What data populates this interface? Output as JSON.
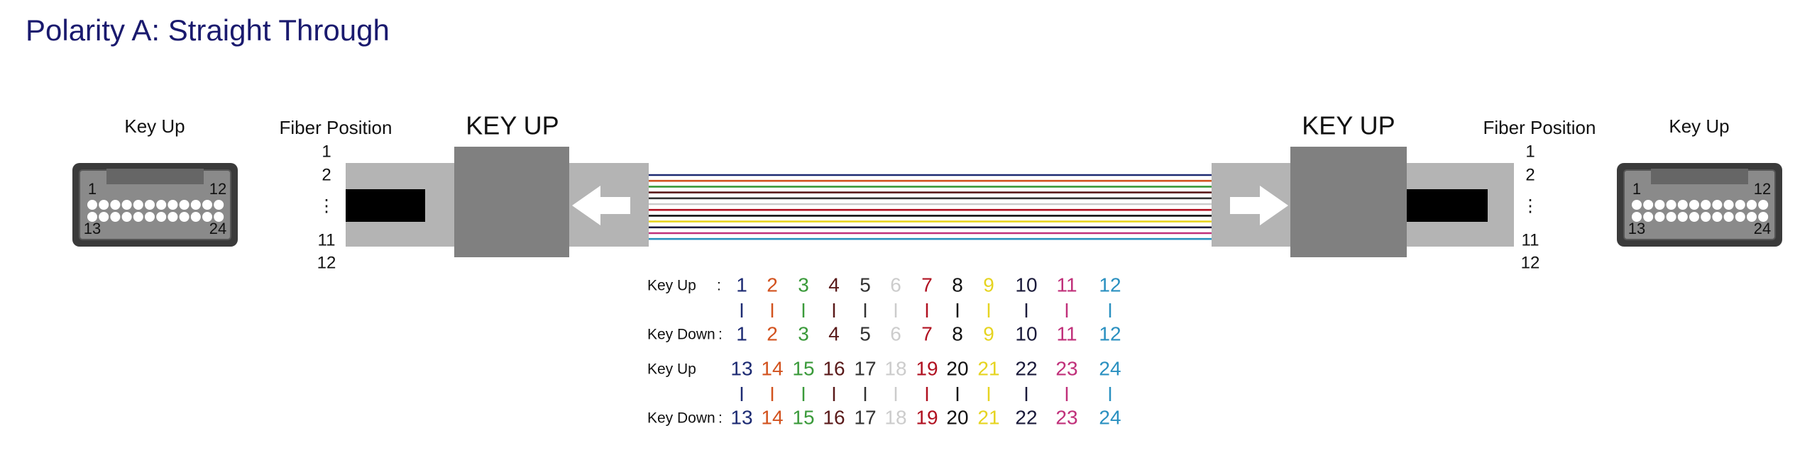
{
  "title": "Polarity A: Straight Through",
  "left": {
    "connector_label": "Key Up",
    "pin_labels": [
      "1",
      "12",
      "13",
      "24"
    ],
    "fiber_position_label": "Fiber Position",
    "positions": [
      "1",
      "2",
      "⋮",
      "11",
      "12"
    ],
    "key_label": "KEY UP"
  },
  "right": {
    "connector_label": "Key Up",
    "pin_labels": [
      "1",
      "12",
      "13",
      "24"
    ],
    "fiber_position_label": "Fiber Position",
    "positions": [
      "1",
      "2",
      "⋮",
      "11",
      "12"
    ],
    "key_label": "KEY UP"
  },
  "fiber_colors": [
    "#1c2a72",
    "#d2521e",
    "#3a9a3a",
    "#5a1a1a",
    "#333333",
    "#cccccc",
    "#b01020",
    "#111111",
    "#e6d420",
    "#1a1a3a",
    "#c0307a",
    "#2a90c0"
  ],
  "mapping": {
    "rows": [
      {
        "label": "Key Up",
        "separator": ":",
        "fibers": [
          "1",
          "2",
          "3",
          "4",
          "5",
          "6",
          "7",
          "8",
          "9",
          "10",
          "11",
          "12"
        ]
      },
      {
        "label": "Key Down",
        "separator": ":",
        "fibers": [
          "1",
          "2",
          "3",
          "4",
          "5",
          "6",
          "7",
          "8",
          "9",
          "10",
          "11",
          "12"
        ]
      },
      {
        "label": "Key Up",
        "fibers": [
          "13",
          "14",
          "15",
          "16",
          "17",
          "18",
          "19",
          "20",
          "21",
          "22",
          "23",
          "24"
        ]
      },
      {
        "label": "Key Down",
        "separator": ":",
        "fibers": [
          "13",
          "14",
          "15",
          "16",
          "17",
          "18",
          "19",
          "20",
          "21",
          "22",
          "23",
          "24"
        ]
      }
    ]
  }
}
